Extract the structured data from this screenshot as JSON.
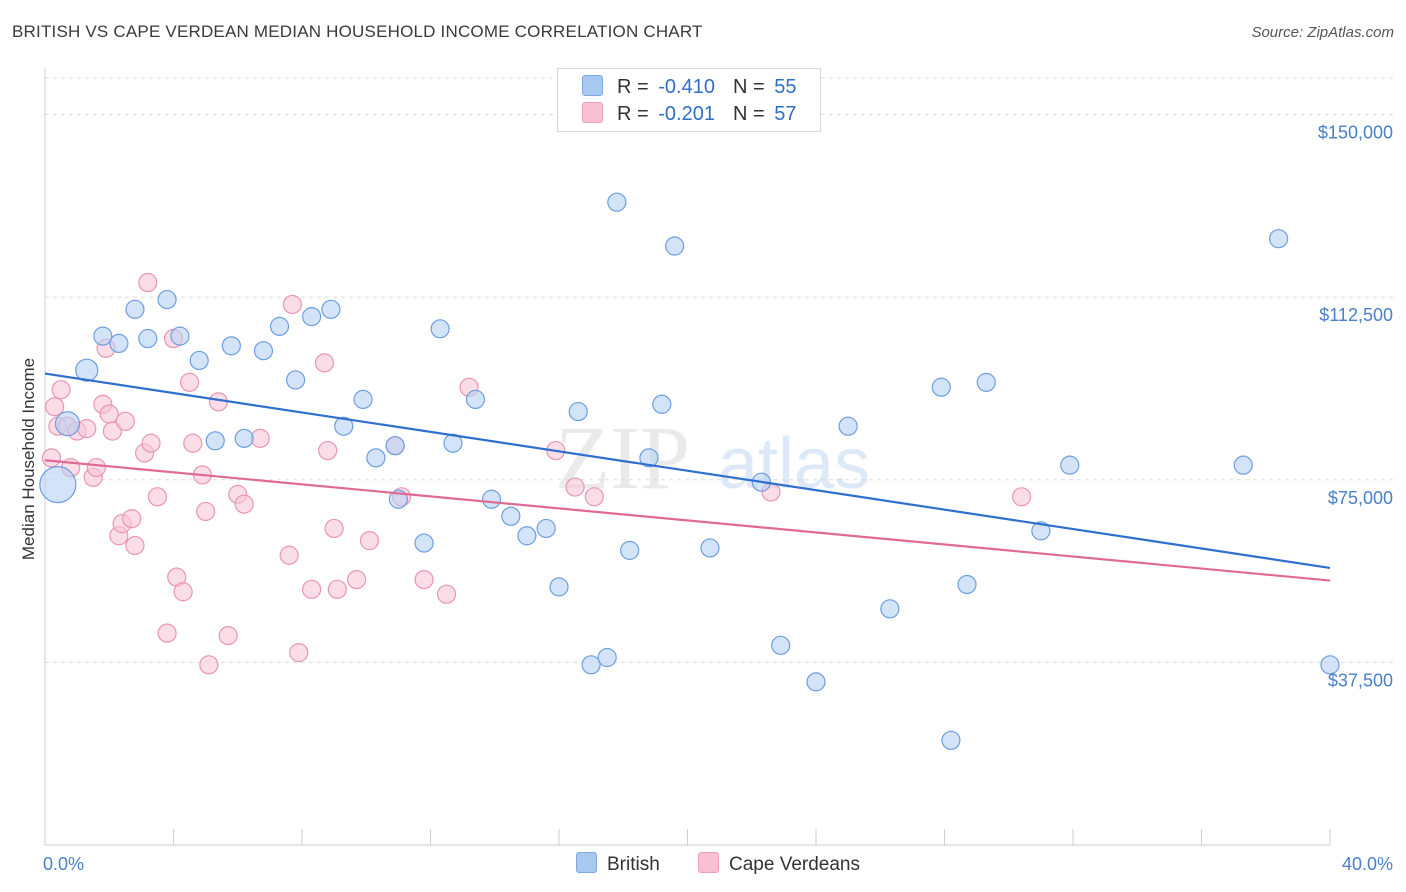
{
  "title": "BRITISH VS CAPE VERDEAN MEDIAN HOUSEHOLD INCOME CORRELATION CHART",
  "source": "Source: ZipAtlas.com",
  "watermark": {
    "zip": "ZIP",
    "atlas": "atlas"
  },
  "legend": {
    "rows": [
      {
        "r_label": "R =",
        "r_value": "-0.410",
        "n_label": "N =",
        "n_value": "55",
        "color": "#a9c8f0",
        "border": "#7fa8e0"
      },
      {
        "r_label": "R =",
        "r_value": "-0.201",
        "n_label": "N =",
        "n_value": "57",
        "color": "#f7c0d3",
        "border": "#eea0bb"
      }
    ]
  },
  "bottom_legend": {
    "british": "British",
    "cape_verdeans": "Cape Verdeans"
  },
  "chart_data": {
    "type": "scatter",
    "xlabel": "",
    "ylabel": "Median Household Income",
    "xlim": [
      0,
      40
    ],
    "ylim": [
      0,
      157500
    ],
    "x_tick_labels": {
      "min": "0.0%",
      "max": "40.0%"
    },
    "y_ticks": [
      {
        "value": 150000,
        "label": "$150,000"
      },
      {
        "value": 112500,
        "label": "$112,500"
      },
      {
        "value": 75000,
        "label": "$75,000"
      },
      {
        "value": 37500,
        "label": "$37,500"
      }
    ],
    "grid": true,
    "colors": {
      "british_fill": "#b8d2f3",
      "british_stroke": "#6d9ee0",
      "british_line": "#2f6fd0",
      "cape_fill": "#f8c6d8",
      "cape_stroke": "#e995b4",
      "cape_line": "#e06a93"
    },
    "series": [
      {
        "name": "British",
        "trend": {
          "x": [
            0,
            40
          ],
          "y": [
            96800,
            56900
          ]
        },
        "points": [
          [
            0.4,
            74000,
            18
          ],
          [
            0.7,
            86500,
            12
          ],
          [
            1.3,
            97500,
            11
          ],
          [
            1.8,
            104500,
            9
          ],
          [
            2.3,
            103000,
            9
          ],
          [
            2.8,
            110000,
            9
          ],
          [
            3.2,
            104000,
            9
          ],
          [
            3.8,
            112000,
            9
          ],
          [
            4.2,
            104500,
            9
          ],
          [
            4.8,
            99500,
            9
          ],
          [
            5.3,
            83000,
            9
          ],
          [
            5.8,
            102500,
            9
          ],
          [
            6.2,
            83500,
            9
          ],
          [
            6.8,
            101500,
            9
          ],
          [
            7.3,
            106500,
            9
          ],
          [
            7.8,
            95500,
            9
          ],
          [
            8.3,
            108500,
            9
          ],
          [
            8.9,
            110000,
            9
          ],
          [
            9.3,
            86000,
            9
          ],
          [
            9.9,
            91500,
            9
          ],
          [
            10.3,
            79500,
            9
          ],
          [
            10.9,
            82000,
            9
          ],
          [
            11.0,
            71000,
            9
          ],
          [
            11.8,
            62000,
            9
          ],
          [
            12.3,
            106000,
            9
          ],
          [
            12.7,
            82500,
            9
          ],
          [
            13.4,
            91500,
            9
          ],
          [
            13.9,
            71000,
            9
          ],
          [
            14.5,
            67500,
            9
          ],
          [
            15.0,
            63500,
            9
          ],
          [
            15.6,
            65000,
            9
          ],
          [
            16.0,
            53000,
            9
          ],
          [
            16.6,
            89000,
            9
          ],
          [
            17.0,
            37000,
            9
          ],
          [
            17.5,
            38500,
            9
          ],
          [
            17.8,
            132000,
            9
          ],
          [
            18.2,
            60500,
            9
          ],
          [
            18.8,
            79500,
            9
          ],
          [
            19.2,
            90500,
            9
          ],
          [
            19.6,
            123000,
            9
          ],
          [
            20.7,
            61000,
            9
          ],
          [
            22.3,
            74500,
            9
          ],
          [
            22.9,
            41000,
            9
          ],
          [
            24.0,
            33500,
            9
          ],
          [
            25.0,
            86000,
            9
          ],
          [
            26.3,
            48500,
            9
          ],
          [
            27.9,
            94000,
            9
          ],
          [
            28.2,
            21500,
            9
          ],
          [
            28.7,
            53500,
            9
          ],
          [
            29.3,
            95000,
            9
          ],
          [
            31.0,
            64500,
            9
          ],
          [
            31.9,
            78000,
            9
          ],
          [
            37.3,
            78000,
            9
          ],
          [
            38.4,
            124500,
            9
          ],
          [
            40.0,
            37000,
            9
          ]
        ]
      },
      {
        "name": "Cape Verdeans",
        "trend": {
          "x": [
            0,
            40
          ],
          "y": [
            79000,
            54300
          ]
        },
        "points": [
          [
            0.2,
            79500,
            9
          ],
          [
            0.3,
            90000,
            9
          ],
          [
            0.4,
            86000,
            9
          ],
          [
            0.5,
            93500,
            9
          ],
          [
            0.7,
            86000,
            9
          ],
          [
            0.8,
            77500,
            9
          ],
          [
            1.0,
            85000,
            9
          ],
          [
            1.3,
            85500,
            9
          ],
          [
            1.5,
            75500,
            9
          ],
          [
            1.6,
            77500,
            9
          ],
          [
            1.8,
            90500,
            9
          ],
          [
            1.9,
            102000,
            9
          ],
          [
            2.0,
            88500,
            9
          ],
          [
            2.1,
            85000,
            9
          ],
          [
            2.3,
            63500,
            9
          ],
          [
            2.4,
            66000,
            9
          ],
          [
            2.5,
            87000,
            9
          ],
          [
            2.7,
            67000,
            9
          ],
          [
            2.8,
            61500,
            9
          ],
          [
            3.1,
            80500,
            9
          ],
          [
            3.2,
            115500,
            9
          ],
          [
            3.3,
            82500,
            9
          ],
          [
            3.5,
            71500,
            9
          ],
          [
            3.8,
            43500,
            9
          ],
          [
            4.0,
            104000,
            9
          ],
          [
            4.1,
            55000,
            9
          ],
          [
            4.3,
            52000,
            9
          ],
          [
            4.5,
            95000,
            9
          ],
          [
            4.6,
            82500,
            9
          ],
          [
            4.9,
            76000,
            9
          ],
          [
            5.0,
            68500,
            9
          ],
          [
            5.1,
            37000,
            9
          ],
          [
            5.4,
            91000,
            9
          ],
          [
            5.7,
            43000,
            9
          ],
          [
            6.0,
            72000,
            9
          ],
          [
            6.2,
            70000,
            9
          ],
          [
            6.7,
            83500,
            9
          ],
          [
            7.6,
            59500,
            9
          ],
          [
            7.7,
            111000,
            9
          ],
          [
            7.9,
            39500,
            9
          ],
          [
            8.3,
            52500,
            9
          ],
          [
            8.7,
            99000,
            9
          ],
          [
            8.8,
            81000,
            9
          ],
          [
            9.0,
            65000,
            9
          ],
          [
            9.1,
            52500,
            9
          ],
          [
            9.7,
            54500,
            9
          ],
          [
            10.1,
            62500,
            9
          ],
          [
            10.9,
            82000,
            9
          ],
          [
            11.1,
            71500,
            9
          ],
          [
            11.8,
            54500,
            9
          ],
          [
            12.5,
            51500,
            9
          ],
          [
            13.2,
            94000,
            9
          ],
          [
            15.9,
            81000,
            9
          ],
          [
            16.5,
            73500,
            9
          ],
          [
            17.1,
            71500,
            9
          ],
          [
            22.6,
            72500,
            9
          ],
          [
            30.4,
            71500,
            9
          ]
        ]
      }
    ]
  }
}
